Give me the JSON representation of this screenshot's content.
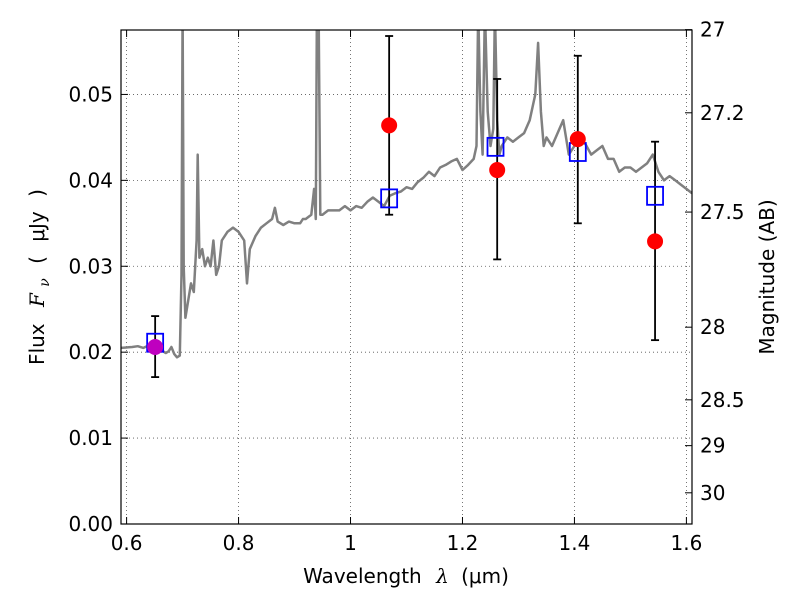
{
  "chart_data": {
    "type": "scatter",
    "title": "",
    "xlabel": "Wavelength  λ (μm)",
    "ylabel": "Flux  Fν  ( μJy )",
    "ylabel_parts": {
      "prefix": "Flux",
      "symbol": "F",
      "subscript": "ν",
      "open": "(",
      "unit": "μJy",
      "close": ")"
    },
    "xlabel_parts": {
      "prefix": "Wavelength",
      "symbol": "λ",
      "unit": "(μm)"
    },
    "y2label": "Magnitude (AB)",
    "xlim": [
      0.59,
      1.61
    ],
    "ylim": [
      0.0,
      0.0575
    ],
    "x_ticks": [
      0.6,
      0.8,
      1.0,
      1.2,
      1.4,
      1.6
    ],
    "x_tick_labels": [
      "0.6",
      "0.8",
      "1",
      "1.2",
      "1.4",
      "1.6"
    ],
    "y_ticks": [
      0.0,
      0.01,
      0.02,
      0.03,
      0.04,
      0.05
    ],
    "y_tick_labels": [
      "0.00",
      "0.01",
      "0.02",
      "0.03",
      "0.04",
      "0.05"
    ],
    "y2_ticks": [
      27,
      27.2,
      27.5,
      28,
      28.5,
      29,
      30
    ],
    "y2_tick_labels": [
      "27",
      "27.2",
      "27.5",
      "28",
      "28.5",
      "29",
      "30"
    ],
    "grid": true,
    "colors": {
      "template": "#808080",
      "observed": "#ff0000",
      "observed_first": "#bf00bf",
      "model": "#0000ff",
      "errorbar": "#000000",
      "grid": "#555555"
    },
    "series": [
      {
        "kind": "template_spectrum",
        "x": [
          0.59,
          0.61,
          0.62,
          0.63,
          0.64,
          0.65,
          0.66,
          0.67,
          0.675,
          0.68,
          0.685,
          0.69,
          0.695,
          0.698,
          0.7,
          0.702,
          0.705,
          0.71,
          0.715,
          0.72,
          0.725,
          0.727,
          0.73,
          0.735,
          0.74,
          0.745,
          0.75,
          0.755,
          0.76,
          0.765,
          0.77,
          0.78,
          0.79,
          0.8,
          0.81,
          0.815,
          0.82,
          0.83,
          0.84,
          0.85,
          0.86,
          0.865,
          0.87,
          0.88,
          0.89,
          0.9,
          0.91,
          0.915,
          0.92,
          0.93,
          0.935,
          0.938,
          0.94,
          0.943,
          0.946,
          0.95,
          0.96,
          0.97,
          0.98,
          0.99,
          1.0,
          1.01,
          1.02,
          1.03,
          1.04,
          1.05,
          1.06,
          1.07,
          1.08,
          1.09,
          1.1,
          1.11,
          1.12,
          1.13,
          1.14,
          1.15,
          1.16,
          1.17,
          1.18,
          1.19,
          1.2,
          1.21,
          1.22,
          1.225,
          1.228,
          1.232,
          1.236,
          1.24,
          1.245,
          1.25,
          1.255,
          1.258,
          1.262,
          1.266,
          1.27,
          1.28,
          1.29,
          1.3,
          1.31,
          1.32,
          1.33,
          1.335,
          1.34,
          1.345,
          1.35,
          1.36,
          1.37,
          1.38,
          1.39,
          1.4,
          1.41,
          1.42,
          1.43,
          1.44,
          1.45,
          1.46,
          1.47,
          1.48,
          1.49,
          1.5,
          1.51,
          1.52,
          1.53,
          1.54,
          1.55,
          1.56,
          1.57,
          1.58,
          1.59,
          1.6,
          1.61
        ],
        "y": [
          0.0205,
          0.0206,
          0.0207,
          0.0205,
          0.0208,
          0.0206,
          0.0203,
          0.0199,
          0.0201,
          0.0206,
          0.0198,
          0.0194,
          0.0196,
          0.029,
          0.06,
          0.03,
          0.024,
          0.026,
          0.028,
          0.027,
          0.033,
          0.043,
          0.031,
          0.032,
          0.03,
          0.031,
          0.03,
          0.033,
          0.029,
          0.03,
          0.033,
          0.034,
          0.0345,
          0.034,
          0.033,
          0.028,
          0.032,
          0.0335,
          0.0345,
          0.035,
          0.0355,
          0.0368,
          0.0352,
          0.0348,
          0.0352,
          0.035,
          0.035,
          0.0355,
          0.0355,
          0.036,
          0.039,
          0.0355,
          0.06,
          0.06,
          0.036,
          0.036,
          0.0365,
          0.0365,
          0.0365,
          0.037,
          0.0365,
          0.037,
          0.0368,
          0.0375,
          0.038,
          0.0375,
          0.037,
          0.0382,
          0.0385,
          0.0387,
          0.0392,
          0.039,
          0.0398,
          0.0403,
          0.041,
          0.0405,
          0.0415,
          0.0418,
          0.0422,
          0.0425,
          0.0412,
          0.0418,
          0.0425,
          0.044,
          0.06,
          0.048,
          0.043,
          0.06,
          0.048,
          0.044,
          0.046,
          0.06,
          0.047,
          0.043,
          0.044,
          0.045,
          0.0445,
          0.045,
          0.0455,
          0.047,
          0.05,
          0.056,
          0.048,
          0.044,
          0.045,
          0.044,
          0.0455,
          0.047,
          0.043,
          0.044,
          0.0448,
          0.0442,
          0.043,
          0.0435,
          0.044,
          0.0425,
          0.0425,
          0.041,
          0.0415,
          0.0415,
          0.041,
          0.0415,
          0.042,
          0.043,
          0.041,
          0.04,
          0.0405,
          0.04,
          0.0395,
          0.039,
          0.0385
        ]
      },
      {
        "name": "observed",
        "x": [
          0.651,
          1.069,
          1.262,
          1.406,
          1.544
        ],
        "y": [
          0.0206,
          0.0464,
          0.0412,
          0.0448,
          0.0329
        ],
        "yerr_low": [
          0.0035,
          0.0104,
          0.0104,
          0.0098,
          0.0115
        ],
        "yerr_high": [
          0.0036,
          0.0104,
          0.0106,
          0.0097,
          0.0116
        ]
      },
      {
        "name": "model",
        "marker": "square",
        "x": [
          0.651,
          1.069,
          1.259,
          1.406,
          1.544
        ],
        "y": [
          0.0211,
          0.0379,
          0.0439,
          0.0433,
          0.0382
        ]
      }
    ]
  }
}
